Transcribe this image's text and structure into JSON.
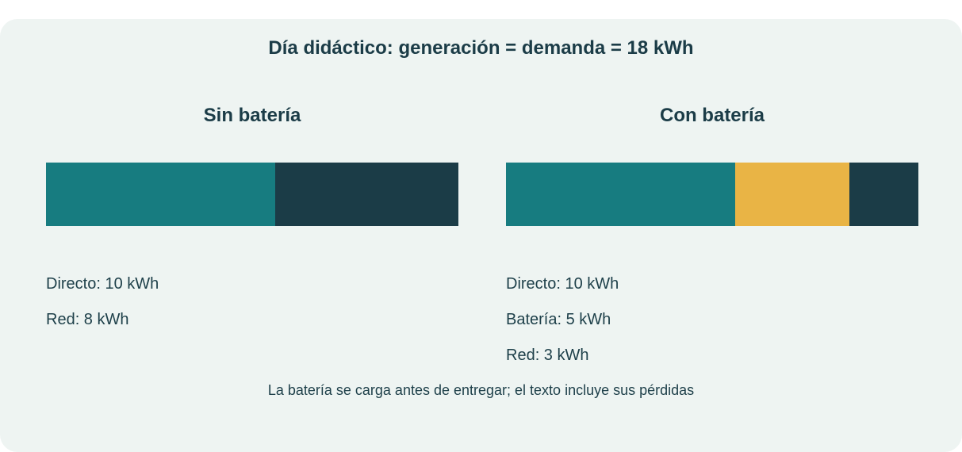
{
  "colors": {
    "direct": "#177c80",
    "battery": "#e9b445",
    "grid": "#1b3c47"
  },
  "chart_data": {
    "type": "bar",
    "stacked": true,
    "orientation": "horizontal",
    "title": "Día didáctico: generación = demanda = 18 kWh",
    "footnote": "La batería se carga antes de entregar; el texto incluye sus pérdidas",
    "total_kwh": 18,
    "panels": [
      {
        "title": "Sin batería",
        "segments": [
          {
            "key": "direct",
            "value": 10,
            "label": "Directo: 10 kWh"
          },
          {
            "key": "grid",
            "value": 8,
            "label": "Red: 8 kWh"
          }
        ]
      },
      {
        "title": "Con batería",
        "segments": [
          {
            "key": "direct",
            "value": 10,
            "label": "Directo: 10 kWh"
          },
          {
            "key": "battery",
            "value": 5,
            "label": "Batería: 5 kWh"
          },
          {
            "key": "grid",
            "value": 3,
            "label": "Red: 3 kWh"
          }
        ]
      }
    ]
  }
}
